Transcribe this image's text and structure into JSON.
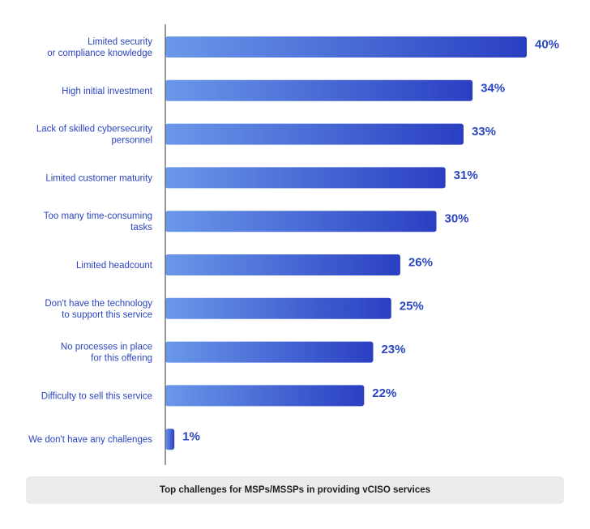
{
  "chart_data": {
    "type": "bar",
    "orientation": "horizontal",
    "categories": [
      [
        "Limited security",
        "or compliance knowledge"
      ],
      [
        "High initial investment"
      ],
      [
        "Lack of skilled cybersecurity",
        "personnel"
      ],
      [
        "Limited customer maturity"
      ],
      [
        "Too many time-consuming",
        "tasks"
      ],
      [
        "Limited headcount"
      ],
      [
        "Don't have the technology",
        "to support this service"
      ],
      [
        "No processes in place",
        "for this offering"
      ],
      [
        "Difficulty to sell this service"
      ],
      [
        "We don't have any challenges"
      ]
    ],
    "values": [
      40,
      34,
      33,
      31,
      30,
      26,
      25,
      23,
      22,
      1
    ],
    "value_labels": [
      "40%",
      "34%",
      "33%",
      "31%",
      "30%",
      "26%",
      "25%",
      "23%",
      "22%",
      "1%"
    ],
    "unit": "%",
    "xlim": [
      0,
      40
    ],
    "grid": false,
    "legend": "none",
    "title": "Top challenges for MSPs/MSSPs in providing vCISO services"
  },
  "colors": {
    "bar_start": "#6a98ea",
    "bar_end": "#2a3fc2",
    "label_text": "#2a45c0",
    "value_text": "#2a45c0",
    "axis": "#555555",
    "caption_bg": "#ebebeb",
    "caption_text": "#1f1f1f"
  }
}
